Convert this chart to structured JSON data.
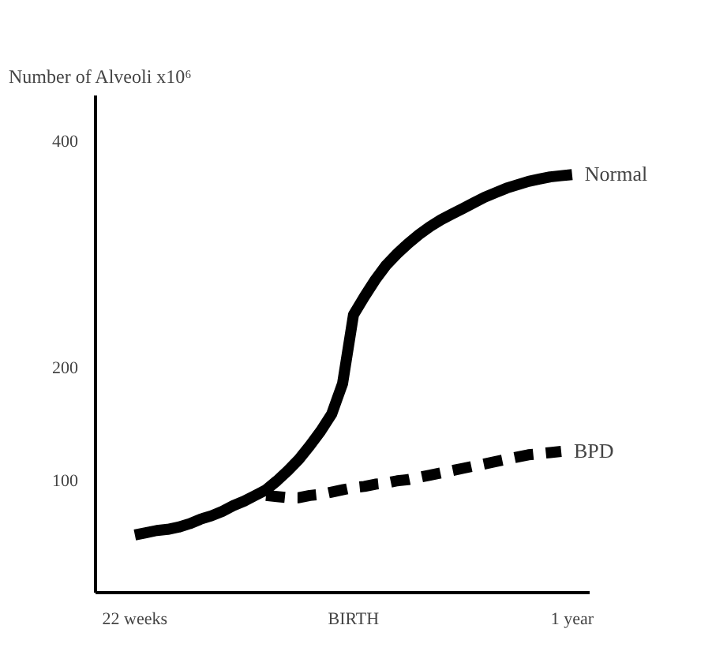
{
  "chart_data": {
    "type": "line",
    "ylabel": "Number of Alveoli x10⁶",
    "categories": [
      "22 weeks",
      null,
      null,
      null,
      null,
      null,
      null,
      null,
      null,
      null,
      null,
      null,
      null,
      null,
      null,
      null,
      null,
      null,
      null,
      null,
      "BIRTH",
      null,
      null,
      null,
      null,
      null,
      null,
      null,
      null,
      null,
      null,
      null,
      null,
      null,
      null,
      null,
      null,
      null,
      null,
      null,
      "1 year"
    ],
    "ylim": [
      0,
      440
    ],
    "yticks": [
      100,
      200,
      400
    ],
    "grid": false,
    "series": [
      {
        "name": "Normal",
        "color": "#000000",
        "line_style": "solid",
        "values": [
          51,
          53,
          55,
          56,
          58,
          61,
          65,
          68,
          72,
          77,
          81,
          86,
          91,
          99,
          108,
          118,
          130,
          143,
          158,
          185,
          246,
          262,
          277,
          290,
          300,
          309,
          317,
          324,
          330,
          335,
          340,
          345,
          350,
          354,
          358,
          361,
          364,
          366,
          368,
          369,
          370
        ]
      },
      {
        "name": "BPD",
        "color": "#000000",
        "line_style": "dashed",
        "values": [
          null,
          null,
          null,
          null,
          null,
          null,
          null,
          null,
          null,
          null,
          null,
          null,
          86,
          85,
          84,
          84,
          86,
          87,
          89,
          91,
          93,
          94,
          96,
          97,
          99,
          100,
          102,
          104,
          106,
          108,
          110,
          112,
          114,
          116,
          118,
          120,
          122,
          123,
          124,
          125,
          null
        ]
      }
    ]
  }
}
